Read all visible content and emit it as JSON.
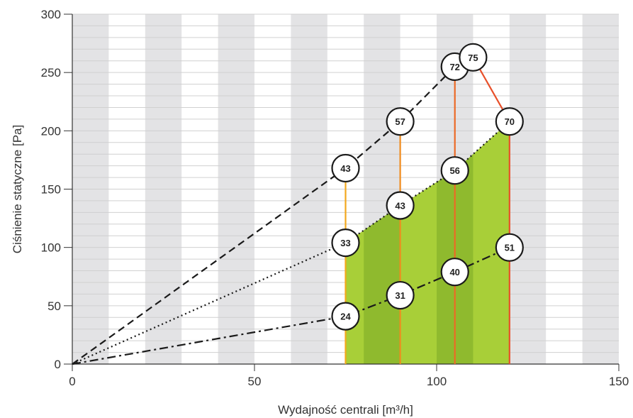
{
  "chart_data": {
    "type": "line",
    "title": "",
    "xlabel": "Wydajność centrali [m³/h]",
    "ylabel": "Ciśnienie statyczne [Pa]",
    "xlim": [
      0,
      150
    ],
    "ylim": [
      0,
      300
    ],
    "x_ticks": [
      "0",
      "50",
      "100",
      "150"
    ],
    "y_ticks": [
      "0",
      "50",
      "100",
      "150",
      "200",
      "250",
      "300"
    ],
    "grid": true,
    "background_bands": {
      "every": 10,
      "color": "#e3e3e5"
    },
    "system_curves": [
      {
        "style": "dashed",
        "points": [
          {
            "x": 0,
            "y": 0
          },
          {
            "x": 75,
            "y": 168
          },
          {
            "x": 90,
            "y": 208
          },
          {
            "x": 105,
            "y": 255
          }
        ]
      },
      {
        "style": "dotted",
        "points": [
          {
            "x": 0,
            "y": 0
          },
          {
            "x": 75,
            "y": 104
          },
          {
            "x": 90,
            "y": 136
          },
          {
            "x": 105,
            "y": 166
          },
          {
            "x": 120,
            "y": 208
          }
        ]
      },
      {
        "style": "dash-dot",
        "points": [
          {
            "x": 0,
            "y": 0
          },
          {
            "x": 75,
            "y": 41
          },
          {
            "x": 90,
            "y": 59
          },
          {
            "x": 105,
            "y": 79
          },
          {
            "x": 120,
            "y": 100
          }
        ]
      }
    ],
    "fan_lines": [
      {
        "color": "#f2a81d",
        "points": [
          {
            "x": 75,
            "y": 0
          },
          {
            "x": 75,
            "y": 160
          }
        ]
      },
      {
        "color": "#f08c1e",
        "points": [
          {
            "x": 90,
            "y": 0
          },
          {
            "x": 90,
            "y": 198
          }
        ]
      },
      {
        "color": "#ec6a26",
        "points": [
          {
            "x": 105,
            "y": 0
          },
          {
            "x": 105,
            "y": 248
          }
        ]
      },
      {
        "color": "#e8502a",
        "points": [
          {
            "x": 110,
            "y": 263
          },
          {
            "x": 120,
            "y": 208
          },
          {
            "x": 120,
            "y": 0
          }
        ]
      }
    ],
    "working_area": {
      "color": "#a8cf38",
      "dark_color": "#8fba2e",
      "polygon": [
        {
          "x": 75,
          "y": 0
        },
        {
          "x": 75,
          "y": 104
        },
        {
          "x": 90,
          "y": 136
        },
        {
          "x": 105,
          "y": 166
        },
        {
          "x": 120,
          "y": 208
        },
        {
          "x": 120,
          "y": 0
        }
      ]
    },
    "badges": [
      {
        "label": "43",
        "x": 75,
        "y": 168
      },
      {
        "label": "33",
        "x": 75,
        "y": 104
      },
      {
        "label": "24",
        "x": 75,
        "y": 41
      },
      {
        "label": "57",
        "x": 90,
        "y": 208
      },
      {
        "label": "43",
        "x": 90,
        "y": 136
      },
      {
        "label": "31",
        "x": 90,
        "y": 59
      },
      {
        "label": "72",
        "x": 105,
        "y": 255
      },
      {
        "label": "56",
        "x": 105,
        "y": 166
      },
      {
        "label": "40",
        "x": 105,
        "y": 79
      },
      {
        "label": "75",
        "x": 110,
        "y": 263
      },
      {
        "label": "70",
        "x": 120,
        "y": 208
      },
      {
        "label": "51",
        "x": 120,
        "y": 100
      }
    ]
  }
}
